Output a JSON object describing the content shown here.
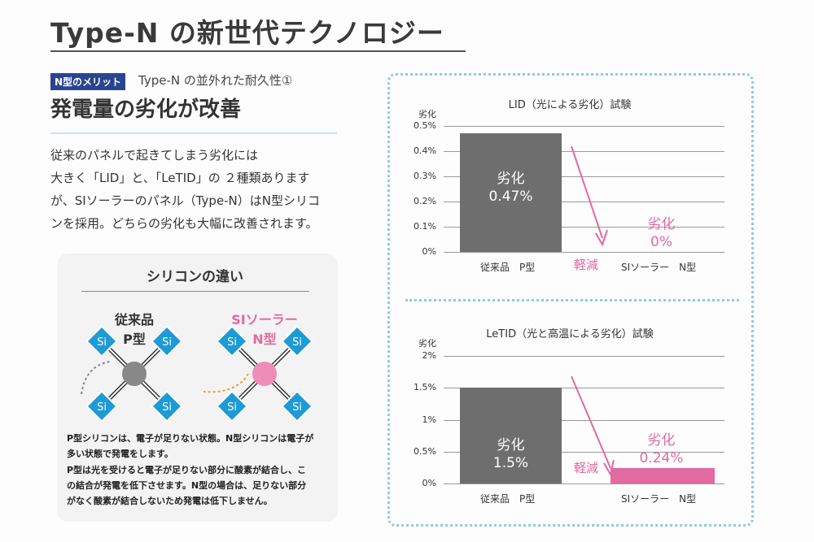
{
  "title": "Type-N の新世代テクノロジー",
  "badge": "N型のメリット",
  "subtitle": "Type-N の並外れた耐久性①",
  "heading": "発電量の劣化が改善",
  "body": [
    "従来のパネルで起きてしまう劣化には",
    "大きく「LID」と、「LeTID」の ２種類あります",
    "が、SIソーラーのパネル（Type-N）はN型シリコ",
    "ンを採用。どちらの劣化も大幅に改善されます。"
  ],
  "diagram": {
    "title": "シリコンの違い",
    "left_label": [
      "従来品",
      "P型"
    ],
    "right_label": [
      "SIソーラー",
      "N型"
    ],
    "atom": "Si",
    "notes": [
      "P型シリコンは、電子が足りない状態。N型シリコンは電子が",
      "多い状態で発電をします。",
      "P型は光を受けると電子が足りない部分に酸素が結合し、こ",
      "の結合が発電を低下させます。N型の場合は、足りない部分",
      "がなく酸素が結合しないため発電は低下しません。"
    ]
  },
  "colors": {
    "bar": "#6e6e6e",
    "pink": "#e26aa0",
    "accent": "#2a4590",
    "dotted": "#8ec9e8"
  },
  "chart_data": [
    {
      "type": "bar",
      "title": "LID（光による劣化）試験",
      "ylabel": "劣化",
      "ylim": [
        0,
        0.5
      ],
      "ticks": [
        "0.5%",
        "0.4%",
        "0.3%",
        "0.2%",
        "0.1%",
        "0%"
      ],
      "categories": [
        "従来品　P型",
        "SIソーラー　N型"
      ],
      "values": [
        0.47,
        0
      ],
      "data_labels": [
        [
          "劣化",
          "0.47%"
        ],
        [
          "劣化",
          "0%"
        ]
      ],
      "annotation": "軽減"
    },
    {
      "type": "bar",
      "title": "LeTID（光と高温による劣化）試験",
      "ylabel": "劣化",
      "ylim": [
        0,
        2
      ],
      "ticks": [
        "2%",
        "1.5%",
        "1%",
        "0.5%",
        "0%"
      ],
      "categories": [
        "従来品　P型",
        "SIソーラー　N型"
      ],
      "values": [
        1.5,
        0.24
      ],
      "data_labels": [
        [
          "劣化",
          "1.5%"
        ],
        [
          "劣化",
          "0.24%"
        ]
      ],
      "annotation": "軽減"
    }
  ]
}
